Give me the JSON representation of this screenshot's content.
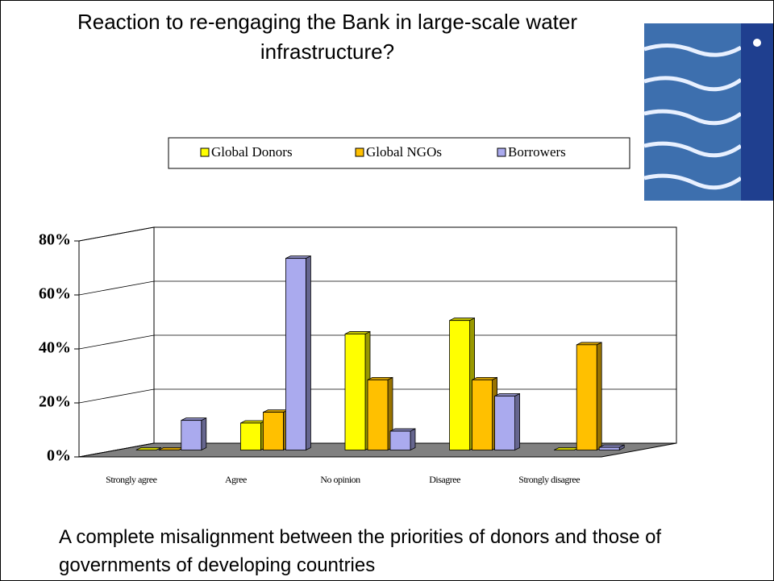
{
  "title": "Reaction to re-engaging the Bank in large-scale water infrastructure?",
  "caption": "A complete misalignment between the priorities of donors and those of governments of developing countries",
  "chart_data": {
    "type": "bar3d",
    "categories": [
      "Strongly agree",
      "Agree",
      "No opinion",
      "Disagree",
      "Strongly disagree"
    ],
    "series": [
      {
        "name": "Global Donors",
        "color": "#ffff00",
        "values": [
          0,
          10,
          43,
          48,
          0
        ]
      },
      {
        "name": "Global NGOs",
        "color": "#ffc000",
        "values": [
          0,
          14,
          26,
          26,
          39
        ]
      },
      {
        "name": "Borrowers",
        "color": "#aaaaee",
        "values": [
          11,
          71,
          7,
          20,
          1
        ]
      }
    ],
    "ylim": [
      0,
      80
    ],
    "yticks": [
      {
        "value": 0,
        "label": "0%"
      },
      {
        "value": 20,
        "label": "20%"
      },
      {
        "value": 40,
        "label": "40%"
      },
      {
        "value": 60,
        "label": "60%"
      },
      {
        "value": 80,
        "label": "80%"
      }
    ],
    "grid": true
  }
}
